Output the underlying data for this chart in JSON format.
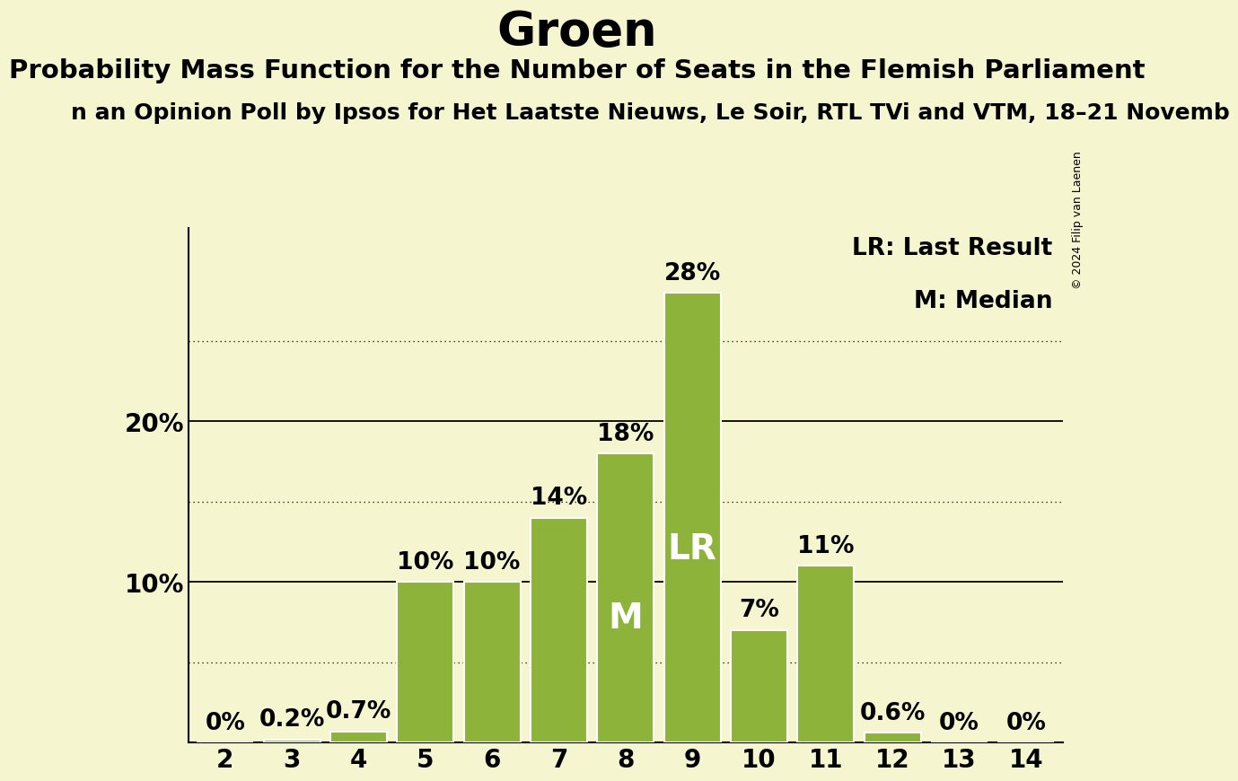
{
  "title": "Groen",
  "subtitle": "Probability Mass Function for the Number of Seats in the Flemish Parliament",
  "sub_subtitle": "n an Opinion Poll by Ipsos for Het Laatste Nieuws, Le Soir, RTL TVi and VTM, 18–21 Novemb",
  "copyright": "© 2024 Filip van Laenen",
  "seats": [
    2,
    3,
    4,
    5,
    6,
    7,
    8,
    9,
    10,
    11,
    12,
    13,
    14
  ],
  "probabilities": [
    0.0,
    0.2,
    0.7,
    10.0,
    10.0,
    14.0,
    18.0,
    28.0,
    7.0,
    11.0,
    0.6,
    0.0,
    0.0
  ],
  "bar_color": "#8db33a",
  "bar_edge_color": "#ffffff",
  "background_color": "#f5f5d0",
  "lr_seat": 9,
  "median_seat": 8,
  "ylim": [
    0,
    32
  ],
  "yticks": [
    10,
    20
  ],
  "dotted_lines": [
    5,
    15,
    25
  ],
  "title_fontsize": 38,
  "subtitle_fontsize": 21,
  "sub_subtitle_fontsize": 18,
  "bar_label_fontsize": 19,
  "axis_label_fontsize": 20,
  "legend_fontsize": 19,
  "lr_label_fontsize": 28,
  "m_label_fontsize": 28,
  "copyright_fontsize": 9
}
